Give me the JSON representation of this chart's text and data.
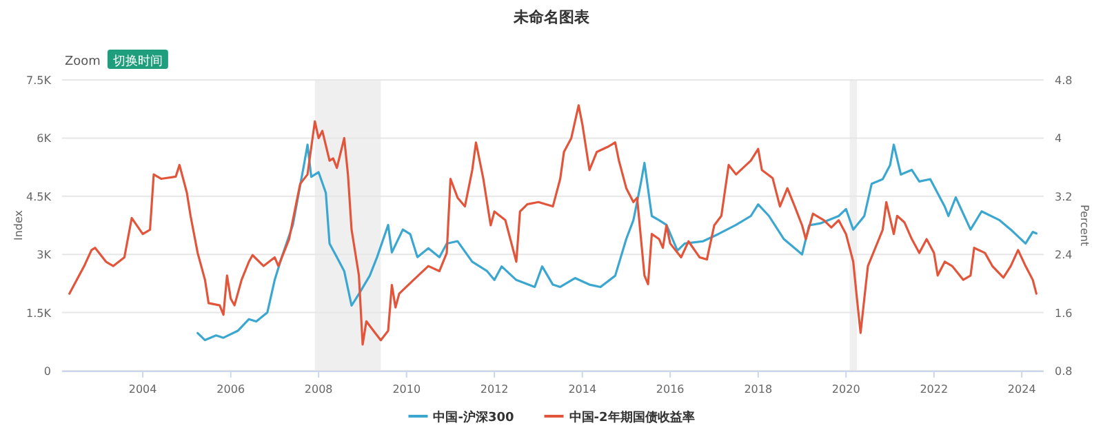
{
  "chart_data": {
    "type": "line",
    "title": "未命名图表",
    "annotations": [
      "Zoom",
      "切换时间"
    ],
    "ylabel": "Index",
    "y2label": "Percent",
    "xlim": [
      "2002-03",
      "2024-07"
    ],
    "xticks": [
      "2004",
      "2006",
      "2008",
      "2010",
      "2012",
      "2014",
      "2016",
      "2018",
      "2020",
      "2022",
      "2024"
    ],
    "ylim": [
      0,
      7500
    ],
    "yticks": [
      0,
      {
        "value": 1500,
        "label": "1.5K"
      },
      {
        "value": 3000,
        "label": "3K"
      },
      {
        "value": 4500,
        "label": "4.5K"
      },
      {
        "value": 6000,
        "label": "6K"
      },
      {
        "value": 7500,
        "label": "7.5K"
      }
    ],
    "y2lim": [
      0.8,
      4.8
    ],
    "y2ticks": [
      0.8,
      1.6,
      2.4,
      3.2,
      4,
      4.8
    ],
    "grid": "y",
    "legend": "bottom",
    "bands": [
      {
        "axis": "x",
        "from": "2007-12",
        "to": "2009-06",
        "color": "#efefef"
      },
      {
        "axis": "x",
        "from": "2020-02",
        "to": "2020-04",
        "color": "#efefef"
      }
    ],
    "series": [
      {
        "name": "中国-沪深300",
        "color": "#3ba7d0",
        "x": [
          "2005-04",
          "2005-06",
          "2005-09",
          "2005-11",
          "2006-03",
          "2006-06",
          "2006-08",
          "2006-11",
          "2007-01",
          "2007-03",
          "2007-06",
          "2007-09",
          "2007-10",
          "2007-11",
          "2008-01",
          "2008-03",
          "2008-04",
          "2008-06",
          "2008-08",
          "2008-10",
          "2008-12",
          "2009-03",
          "2009-05",
          "2009-08",
          "2009-09",
          "2009-12",
          "2010-02",
          "2010-04",
          "2010-07",
          "2010-10",
          "2010-12",
          "2011-03",
          "2011-07",
          "2011-11",
          "2012-01",
          "2012-03",
          "2012-07",
          "2012-12",
          "2013-02",
          "2013-05",
          "2013-07",
          "2013-11",
          "2014-03",
          "2014-06",
          "2014-10",
          "2015-01",
          "2015-03",
          "2015-05",
          "2015-06",
          "2015-08",
          "2015-10",
          "2015-12",
          "2016-03",
          "2016-05",
          "2016-10",
          "2017-02",
          "2017-07",
          "2017-11",
          "2018-01",
          "2018-04",
          "2018-08",
          "2019-01",
          "2019-03",
          "2019-06",
          "2019-11",
          "2020-01",
          "2020-03",
          "2020-06",
          "2020-08",
          "2020-11",
          "2021-01",
          "2021-02",
          "2021-04",
          "2021-07",
          "2021-09",
          "2021-12",
          "2022-04",
          "2022-05",
          "2022-07",
          "2022-11",
          "2023-02",
          "2023-07",
          "2023-10",
          "2024-02",
          "2024-04",
          "2024-05"
        ],
        "values": [
          970,
          790,
          910,
          850,
          1030,
          1330,
          1270,
          1500,
          2340,
          2930,
          3760,
          5300,
          5830,
          5000,
          5120,
          4590,
          3280,
          2930,
          2570,
          1680,
          1980,
          2450,
          2930,
          3760,
          3050,
          3640,
          3520,
          2930,
          3160,
          2930,
          3280,
          3340,
          2810,
          2570,
          2340,
          2690,
          2340,
          2160,
          2690,
          2220,
          2160,
          2390,
          2220,
          2160,
          2450,
          3400,
          3880,
          4820,
          5360,
          3990,
          3880,
          3760,
          3100,
          3280,
          3340,
          3520,
          3760,
          3990,
          4290,
          3990,
          3400,
          3000,
          3750,
          3800,
          3990,
          4170,
          3640,
          3990,
          4820,
          4940,
          5300,
          5830,
          5060,
          5180,
          4880,
          4940,
          4230,
          3990,
          4470,
          3640,
          4110,
          3880,
          3640,
          3280,
          3580,
          3540
        ]
      },
      {
        "name": "中国-2年期国债收益率",
        "color": "#e2553b",
        "axis": "y2",
        "x": [
          "2002-05",
          "2002-09",
          "2002-11",
          "2002-12",
          "2003-03",
          "2003-05",
          "2003-08",
          "2003-10",
          "2004-01",
          "2004-03",
          "2004-04",
          "2004-06",
          "2004-10",
          "2004-11",
          "2005-01",
          "2005-02",
          "2005-04",
          "2005-06",
          "2005-07",
          "2005-10",
          "2005-11",
          "2005-12",
          "2006-01",
          "2006-02",
          "2006-04",
          "2006-06",
          "2006-07",
          "2006-10",
          "2007-01",
          "2007-02",
          "2007-05",
          "2007-06",
          "2007-08",
          "2007-10",
          "2007-12",
          "2008-01",
          "2008-02",
          "2008-04",
          "2008-05",
          "2008-06",
          "2008-08",
          "2008-09",
          "2008-10",
          "2008-12",
          "2009-01",
          "2009-02",
          "2009-04",
          "2009-06",
          "2009-08",
          "2009-09",
          "2009-10",
          "2009-11",
          "2010-03",
          "2010-07",
          "2010-10",
          "2010-12",
          "2011-01",
          "2011-03",
          "2011-05",
          "2011-07",
          "2011-08",
          "2011-10",
          "2011-12",
          "2012-01",
          "2012-04",
          "2012-07",
          "2012-08",
          "2012-10",
          "2013-01",
          "2013-05",
          "2013-07",
          "2013-08",
          "2013-10",
          "2013-12",
          "2014-01",
          "2014-03",
          "2014-05",
          "2014-08",
          "2014-10",
          "2014-11",
          "2015-01",
          "2015-03",
          "2015-04",
          "2015-06",
          "2015-07",
          "2015-08",
          "2015-10",
          "2015-11",
          "2015-12",
          "2016-01",
          "2016-04",
          "2016-06",
          "2016-09",
          "2016-11",
          "2017-01",
          "2017-03",
          "2017-05",
          "2017-07",
          "2017-11",
          "2018-01",
          "2018-02",
          "2018-05",
          "2018-07",
          "2018-09",
          "2018-11",
          "2019-01",
          "2019-02",
          "2019-04",
          "2019-07",
          "2019-09",
          "2019-11",
          "2020-01",
          "2020-03",
          "2020-04",
          "2020-05",
          "2020-06",
          "2020-07",
          "2020-09",
          "2020-11",
          "2020-12",
          "2021-02",
          "2021-03",
          "2021-05",
          "2021-07",
          "2021-09",
          "2021-11",
          "2022-01",
          "2022-02",
          "2022-04",
          "2022-06",
          "2022-09",
          "2022-11",
          "2022-12",
          "2023-03",
          "2023-05",
          "2023-08",
          "2023-10",
          "2023-12",
          "2024-02",
          "2024-04",
          "2024-05"
        ],
        "values": [
          1.86,
          2.24,
          2.46,
          2.49,
          2.3,
          2.24,
          2.36,
          2.9,
          2.68,
          2.74,
          3.5,
          3.44,
          3.47,
          3.63,
          3.25,
          2.93,
          2.42,
          2.05,
          1.73,
          1.7,
          1.57,
          2.11,
          1.79,
          1.7,
          2.05,
          2.3,
          2.39,
          2.24,
          2.36,
          2.24,
          2.61,
          2.87,
          3.37,
          3.5,
          4.23,
          4.0,
          4.1,
          3.69,
          3.72,
          3.59,
          4.0,
          3.5,
          2.74,
          2.11,
          1.16,
          1.48,
          1.35,
          1.22,
          1.35,
          1.98,
          1.67,
          1.86,
          2.05,
          2.24,
          2.17,
          2.42,
          3.44,
          3.18,
          3.06,
          3.56,
          3.94,
          3.44,
          2.8,
          2.99,
          2.87,
          2.3,
          2.99,
          3.09,
          3.12,
          3.06,
          3.44,
          3.81,
          4.0,
          4.45,
          4.19,
          3.56,
          3.81,
          3.88,
          3.94,
          3.69,
          3.31,
          3.12,
          3.18,
          2.11,
          1.99,
          2.68,
          2.61,
          2.49,
          2.8,
          2.55,
          2.36,
          2.58,
          2.36,
          2.33,
          2.8,
          2.93,
          3.63,
          3.5,
          3.69,
          3.85,
          3.56,
          3.45,
          3.06,
          3.31,
          3.06,
          2.8,
          2.61,
          2.96,
          2.87,
          2.77,
          2.87,
          2.68,
          2.3,
          1.79,
          1.32,
          1.79,
          2.24,
          2.49,
          2.74,
          3.12,
          2.68,
          2.93,
          2.84,
          2.61,
          2.42,
          2.61,
          2.42,
          2.11,
          2.3,
          2.24,
          2.05,
          2.11,
          2.49,
          2.42,
          2.24,
          2.08,
          2.24,
          2.46,
          2.24,
          2.05,
          1.86
        ]
      }
    ]
  }
}
